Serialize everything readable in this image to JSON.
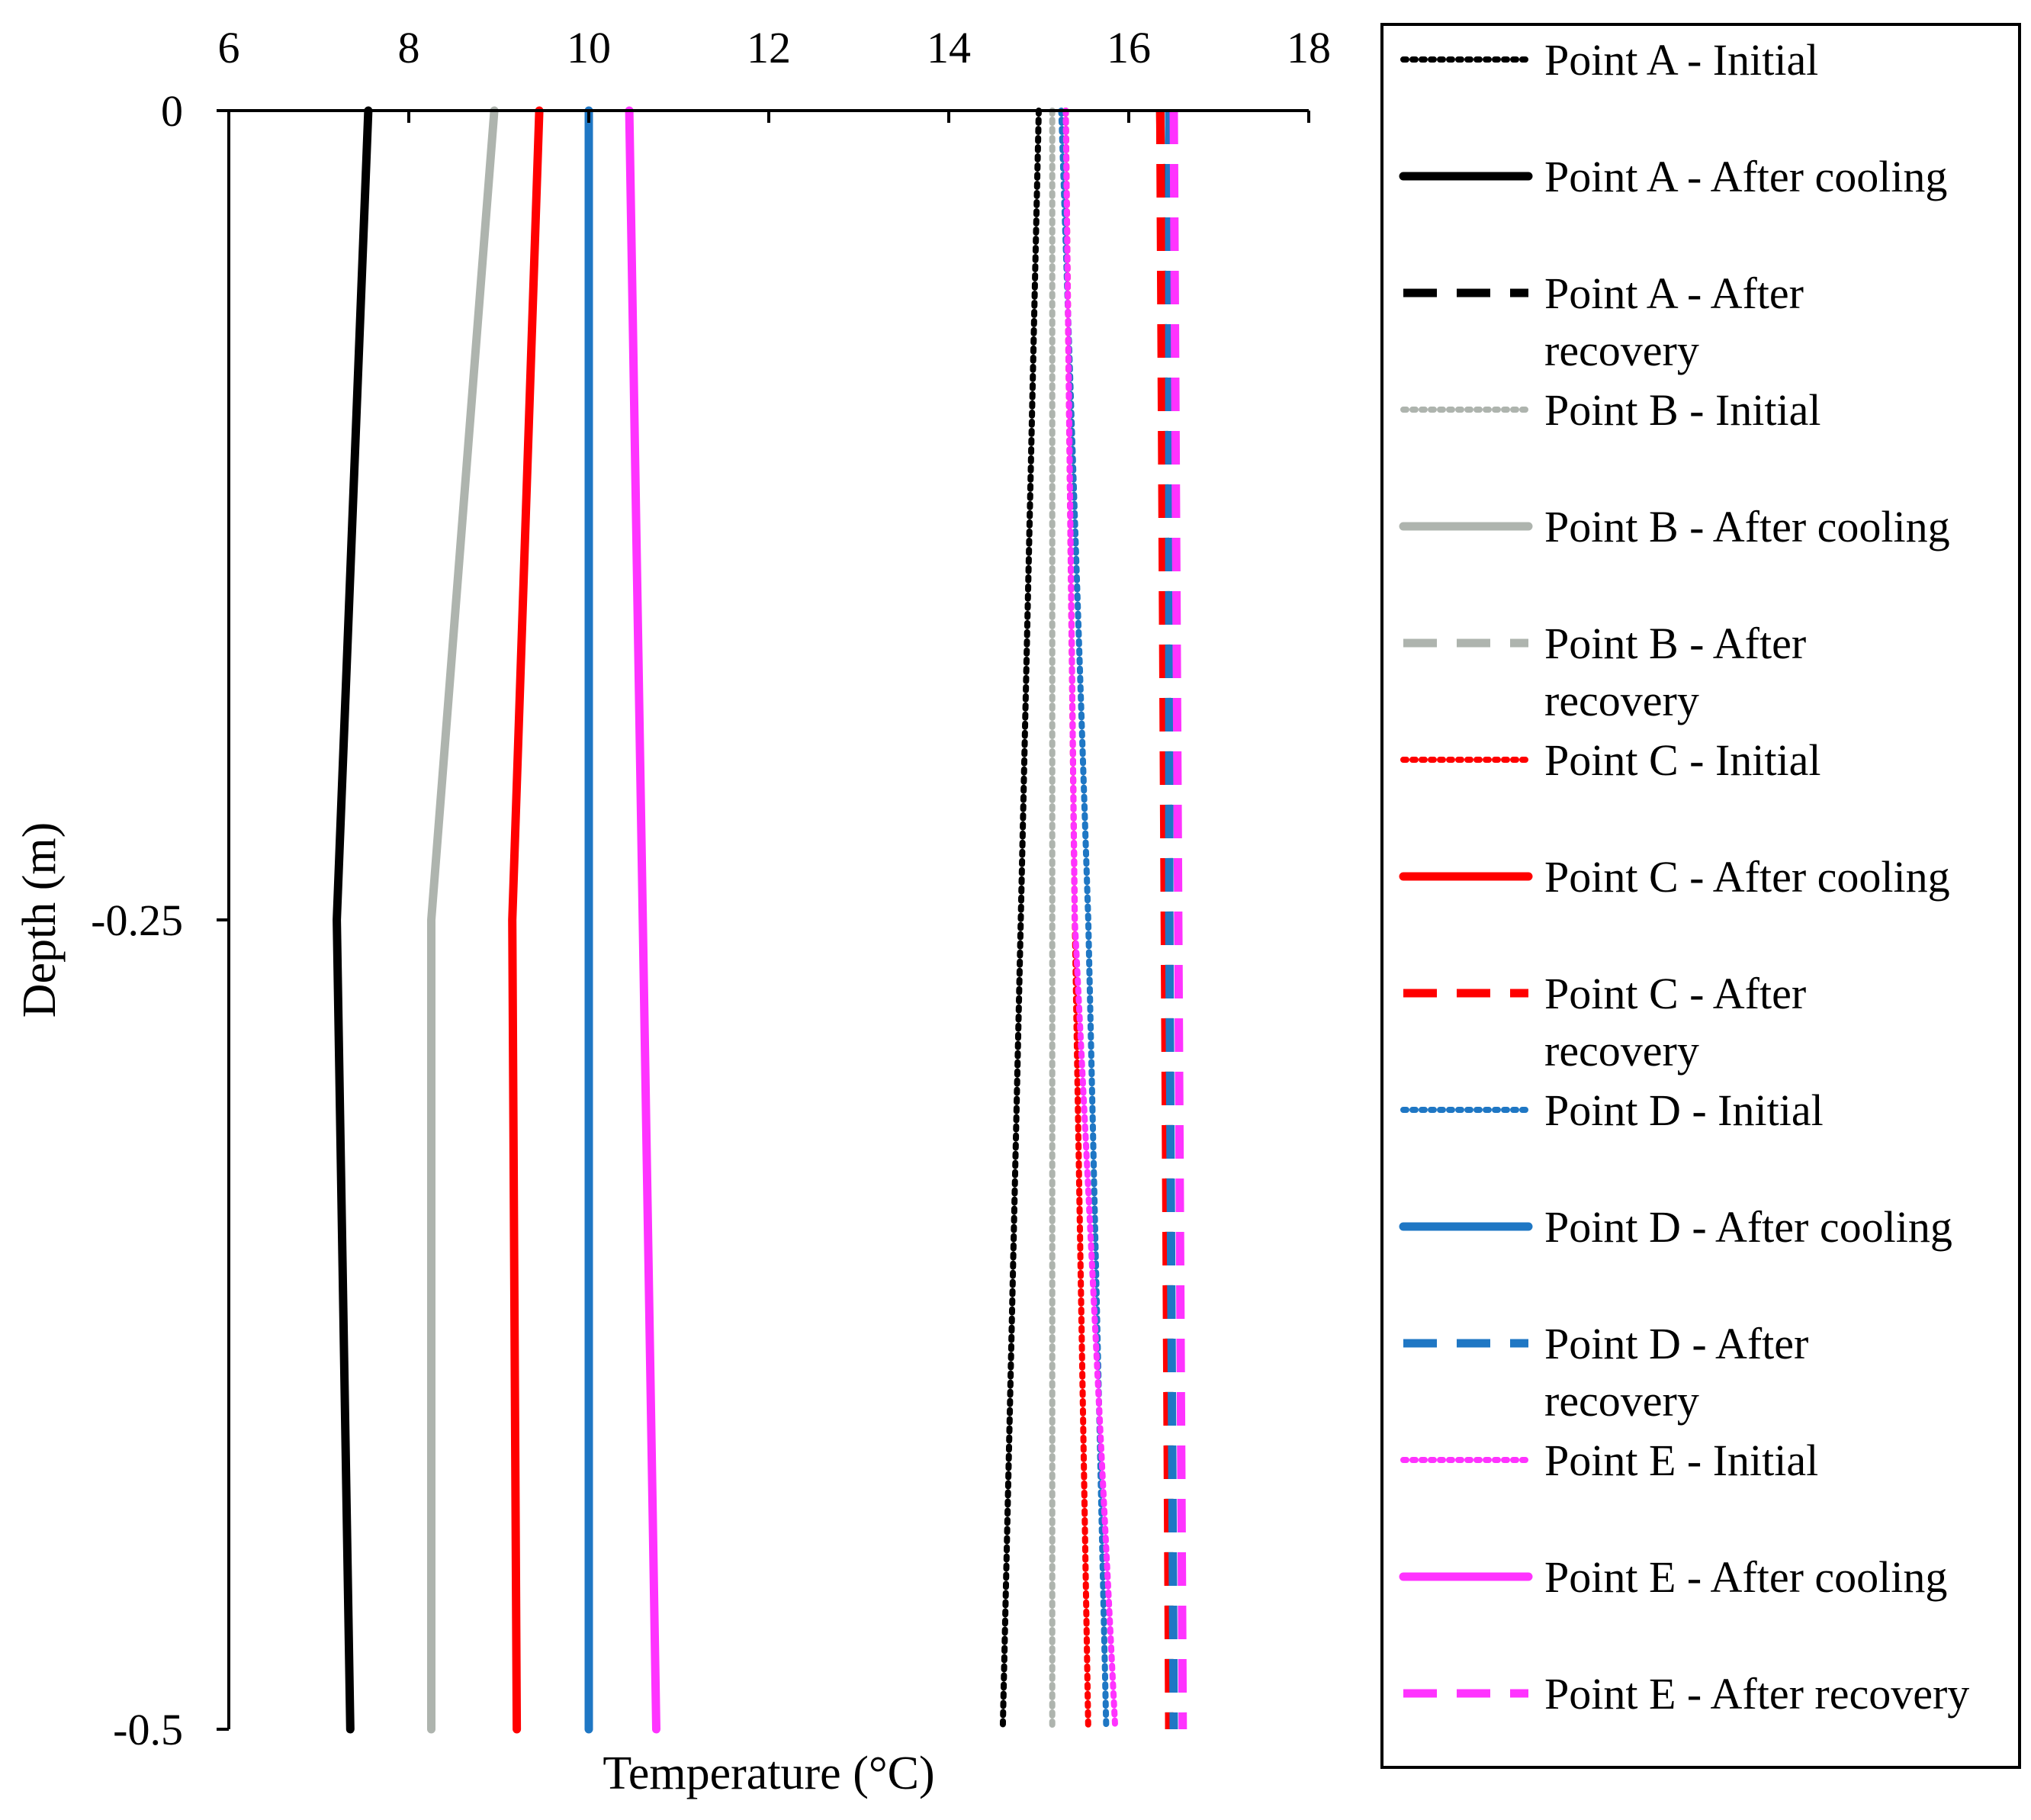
{
  "chart_data": {
    "type": "line",
    "title": "",
    "xlabel": "Temperature (°C)",
    "ylabel": "Depth (m)",
    "xlim": [
      6,
      18
    ],
    "ylim": [
      -0.5,
      0
    ],
    "xticks": [
      "6",
      "8",
      "10",
      "12",
      "14",
      "16",
      "18"
    ],
    "yticks": [
      "0",
      "-0.25",
      "-0.5"
    ],
    "depths": [
      0,
      -0.25,
      -0.5
    ],
    "legend_position": "right",
    "series": [
      {
        "name": "Point A - Initial",
        "label_lines": [
          "Point A - Initial"
        ],
        "color": "#000000",
        "dash": "dotted",
        "values": [
          15.0,
          14.8,
          14.6
        ]
      },
      {
        "name": "Point A - After cooling",
        "label_lines": [
          "Point A - After cooling"
        ],
        "color": "#000000",
        "dash": "solid",
        "values": [
          7.55,
          7.2,
          7.35
        ]
      },
      {
        "name": "Point A - After recovery",
        "label_lines": [
          "Point A - After",
          "recovery"
        ],
        "color": "#000000",
        "dash": "dashed",
        "values": [
          16.35,
          16.45,
          16.45
        ]
      },
      {
        "name": "Point B - Initial",
        "label_lines": [
          "Point B - Initial"
        ],
        "color": "#AEB4AE",
        "dash": "dotted",
        "values": [
          15.15,
          15.15,
          15.15
        ]
      },
      {
        "name": "Point B - After cooling",
        "label_lines": [
          "Point B - After cooling"
        ],
        "color": "#AEB4AE",
        "dash": "solid",
        "values": [
          8.95,
          8.25,
          8.25
        ]
      },
      {
        "name": "Point B - After recovery",
        "label_lines": [
          "Point B - After",
          "recovery"
        ],
        "color": "#AEB4AE",
        "dash": "dashed",
        "values": [
          16.45,
          16.45,
          16.45
        ]
      },
      {
        "name": "Point C - Initial",
        "label_lines": [
          "Point C - Initial"
        ],
        "color": "#FF0000",
        "dash": "dotted",
        "values": [
          15.3,
          15.4,
          15.55
        ]
      },
      {
        "name": "Point C - After cooling",
        "label_lines": [
          "Point C - After cooling"
        ],
        "color": "#FF0000",
        "dash": "solid",
        "values": [
          9.45,
          9.15,
          9.2
        ]
      },
      {
        "name": "Point C - After recovery",
        "label_lines": [
          "Point C - After",
          "recovery"
        ],
        "color": "#FF0000",
        "dash": "dashed",
        "values": [
          16.35,
          16.4,
          16.45
        ]
      },
      {
        "name": "Point D - Initial",
        "label_lines": [
          "Point D - Initial"
        ],
        "color": "#1F77C4",
        "dash": "dotted",
        "values": [
          15.25,
          15.55,
          15.75
        ]
      },
      {
        "name": "Point D - After cooling",
        "label_lines": [
          "Point D - After cooling"
        ],
        "color": "#1F77C4",
        "dash": "solid",
        "values": [
          10.0,
          10.0,
          10.0
        ]
      },
      {
        "name": "Point D - After recovery",
        "label_lines": [
          "Point D - After",
          "recovery"
        ],
        "color": "#1F77C4",
        "dash": "dashed",
        "values": [
          16.45,
          16.45,
          16.5
        ]
      },
      {
        "name": "Point E - Initial",
        "label_lines": [
          "Point E - Initial"
        ],
        "color": "#FF33FF",
        "dash": "dotted",
        "values": [
          15.3,
          15.4,
          15.85
        ]
      },
      {
        "name": "Point E - After cooling",
        "label_lines": [
          "Point E - After cooling"
        ],
        "color": "#FF33FF",
        "dash": "solid",
        "values": [
          10.45,
          10.6,
          10.75
        ]
      },
      {
        "name": "Point E - After recovery",
        "label_lines": [
          "Point E - After recovery"
        ],
        "color": "#FF33FF",
        "dash": "dashed",
        "values": [
          16.5,
          16.55,
          16.6
        ]
      }
    ]
  }
}
